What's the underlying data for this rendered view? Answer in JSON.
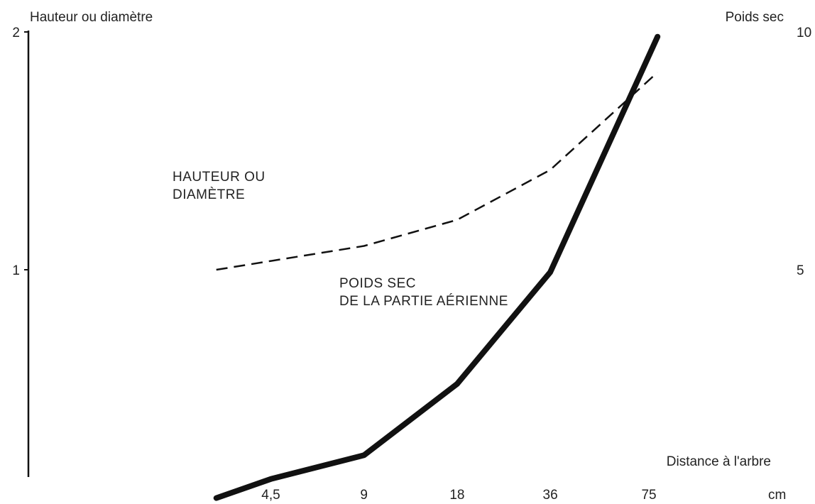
{
  "chart_data": {
    "type": "line",
    "title": "",
    "left_axis_label": "Hauteur ou diamètre",
    "right_axis_label": "Poids sec",
    "x_axis_label": "Distance à l'arbre",
    "x_unit": "cm",
    "x_ticks": [
      {
        "value": 4.5,
        "label": "4,5"
      },
      {
        "value": 9,
        "label": "9"
      },
      {
        "value": 18,
        "label": "18"
      },
      {
        "value": 36,
        "label": "36"
      },
      {
        "value": 75,
        "label": "75"
      }
    ],
    "x_scale": "log2",
    "left_ticks": [
      {
        "value": 1,
        "label": "1"
      },
      {
        "value": 2,
        "label": "2"
      }
    ],
    "right_ticks": [
      {
        "value": 5,
        "label": "5"
      },
      {
        "value": 10,
        "label": "10"
      }
    ],
    "left_ylim": [
      0,
      2
    ],
    "right_ylim": [
      0,
      10
    ],
    "series": [
      {
        "name": "HAUTEUR OU DIAMÈTRE",
        "label_lines": [
          "HAUTEUR OU",
          "DIAMÈTRE"
        ],
        "axis": "left",
        "style": "dashed",
        "x": [
          3,
          9,
          18,
          36,
          80
        ],
        "y": [
          1.0,
          1.1,
          1.21,
          1.42,
          1.83
        ]
      },
      {
        "name": "POIDS SEC DE LA PARTIE AÉRIENNE",
        "label_lines": [
          "POIDS SEC",
          "DE LA PARTIE AÉRIENNE"
        ],
        "axis": "right",
        "style": "solid-thick",
        "x": [
          3,
          4.5,
          9,
          18,
          36,
          80
        ],
        "y": [
          0.2,
          0.6,
          1.1,
          2.6,
          4.95,
          9.9
        ]
      }
    ],
    "grid": false,
    "legend": "none (inline labels)",
    "colors": {
      "line": "#111111",
      "text": "#222222"
    }
  }
}
